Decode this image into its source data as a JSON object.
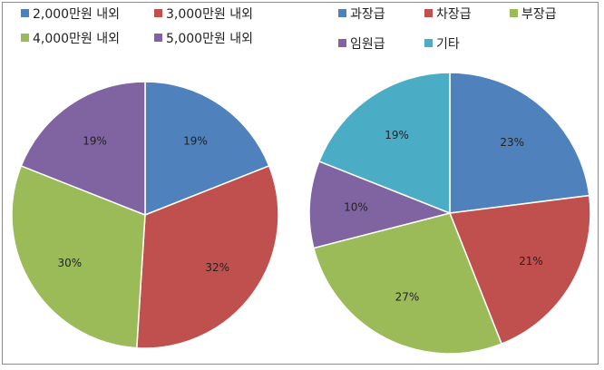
{
  "chart_data": [
    {
      "type": "pie",
      "categories": [
        "2,000만원 내외",
        "3,000만원 내외",
        "4,000만원 내외",
        "5,000만원 내외"
      ],
      "values": [
        19,
        32,
        30,
        19
      ],
      "labels": [
        "19%",
        "32%",
        "30%",
        "19%"
      ],
      "colors": [
        "#4F81BD",
        "#C0504D",
        "#9BBB59",
        "#8064A2"
      ],
      "legend_position": "top"
    },
    {
      "type": "pie",
      "categories": [
        "과장급",
        "차장급",
        "부장급",
        "임원급",
        "기타"
      ],
      "values": [
        23,
        21,
        27,
        10,
        19
      ],
      "labels": [
        "23%",
        "21%",
        "27%",
        "10%",
        "19%"
      ],
      "colors": [
        "#4F81BD",
        "#C0504D",
        "#9BBB59",
        "#8064A2",
        "#4BACC6"
      ],
      "legend_position": "top"
    }
  ]
}
